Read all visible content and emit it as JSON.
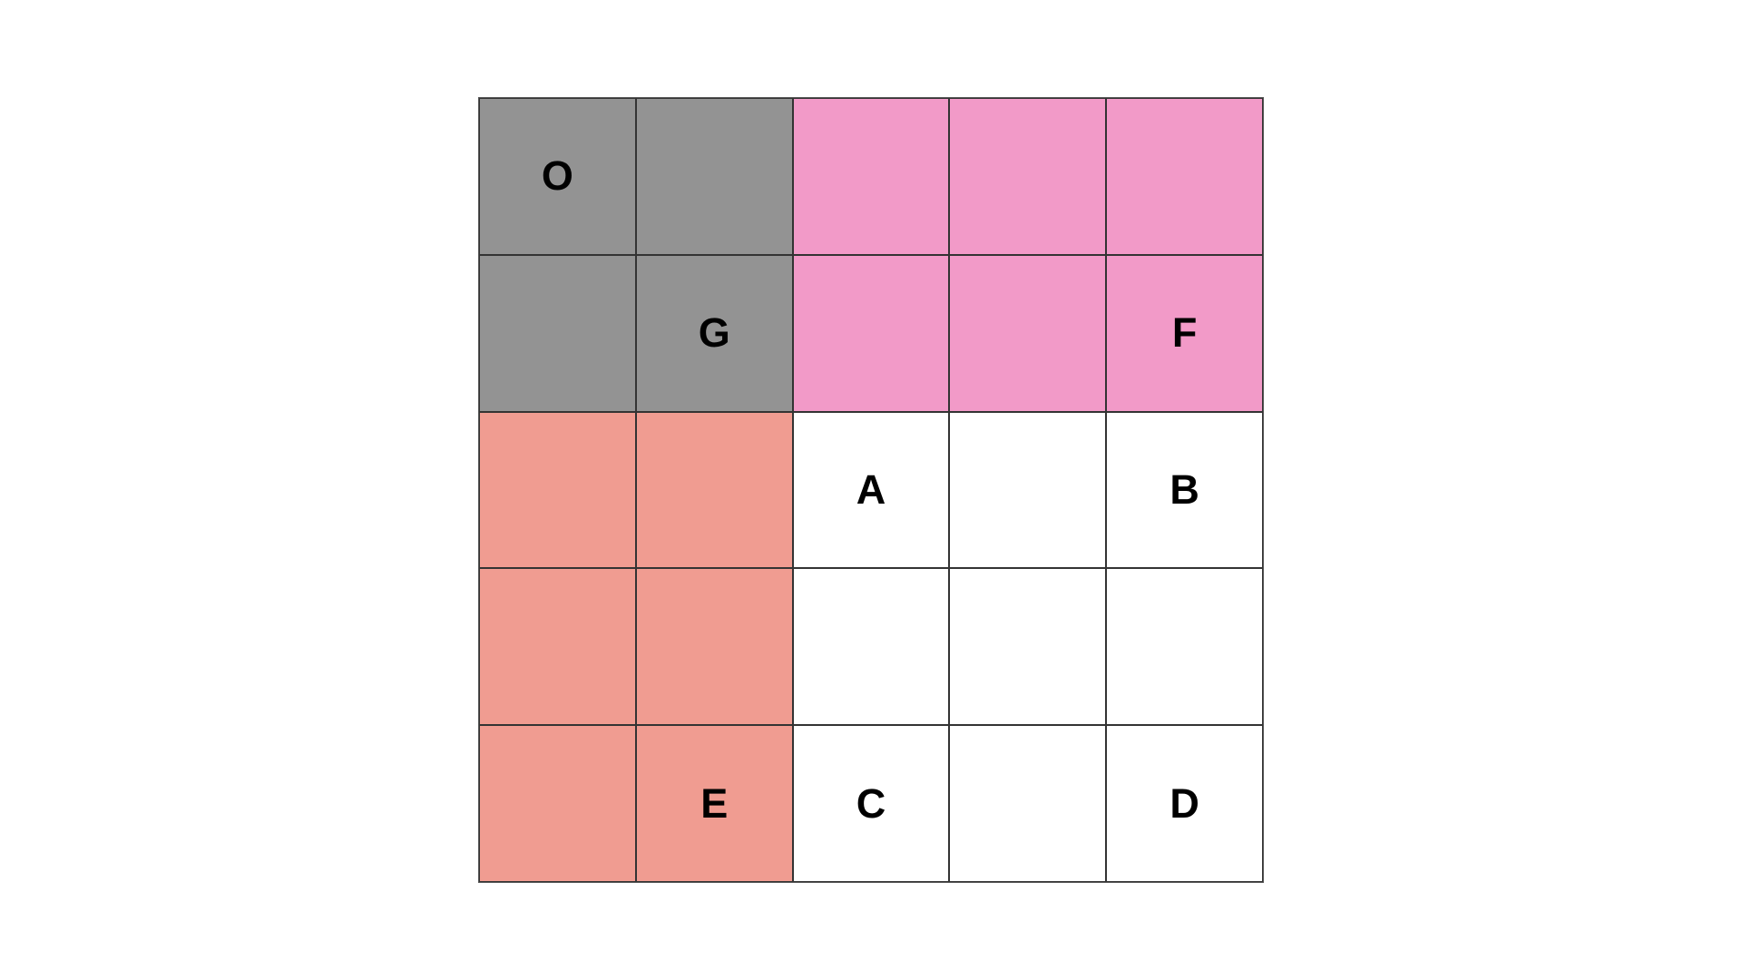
{
  "colors": {
    "gray": "#939393",
    "pink": "#f29ac8",
    "salmon": "#f09c91",
    "white": "#ffffff"
  },
  "grid": {
    "rows": [
      [
        {
          "label": "O",
          "color": "gray"
        },
        {
          "label": "",
          "color": "gray"
        },
        {
          "label": "",
          "color": "pink"
        },
        {
          "label": "",
          "color": "pink"
        },
        {
          "label": "",
          "color": "pink"
        }
      ],
      [
        {
          "label": "",
          "color": "gray"
        },
        {
          "label": "G",
          "color": "gray"
        },
        {
          "label": "",
          "color": "pink"
        },
        {
          "label": "",
          "color": "pink"
        },
        {
          "label": "F",
          "color": "pink"
        }
      ],
      [
        {
          "label": "",
          "color": "salmon"
        },
        {
          "label": "",
          "color": "salmon"
        },
        {
          "label": "A",
          "color": "white"
        },
        {
          "label": "",
          "color": "white"
        },
        {
          "label": "B",
          "color": "white"
        }
      ],
      [
        {
          "label": "",
          "color": "salmon"
        },
        {
          "label": "",
          "color": "salmon"
        },
        {
          "label": "",
          "color": "white"
        },
        {
          "label": "",
          "color": "white"
        },
        {
          "label": "",
          "color": "white"
        }
      ],
      [
        {
          "label": "",
          "color": "salmon"
        },
        {
          "label": "E",
          "color": "salmon"
        },
        {
          "label": "C",
          "color": "white"
        },
        {
          "label": "",
          "color": "white"
        },
        {
          "label": "D",
          "color": "white"
        }
      ]
    ]
  }
}
